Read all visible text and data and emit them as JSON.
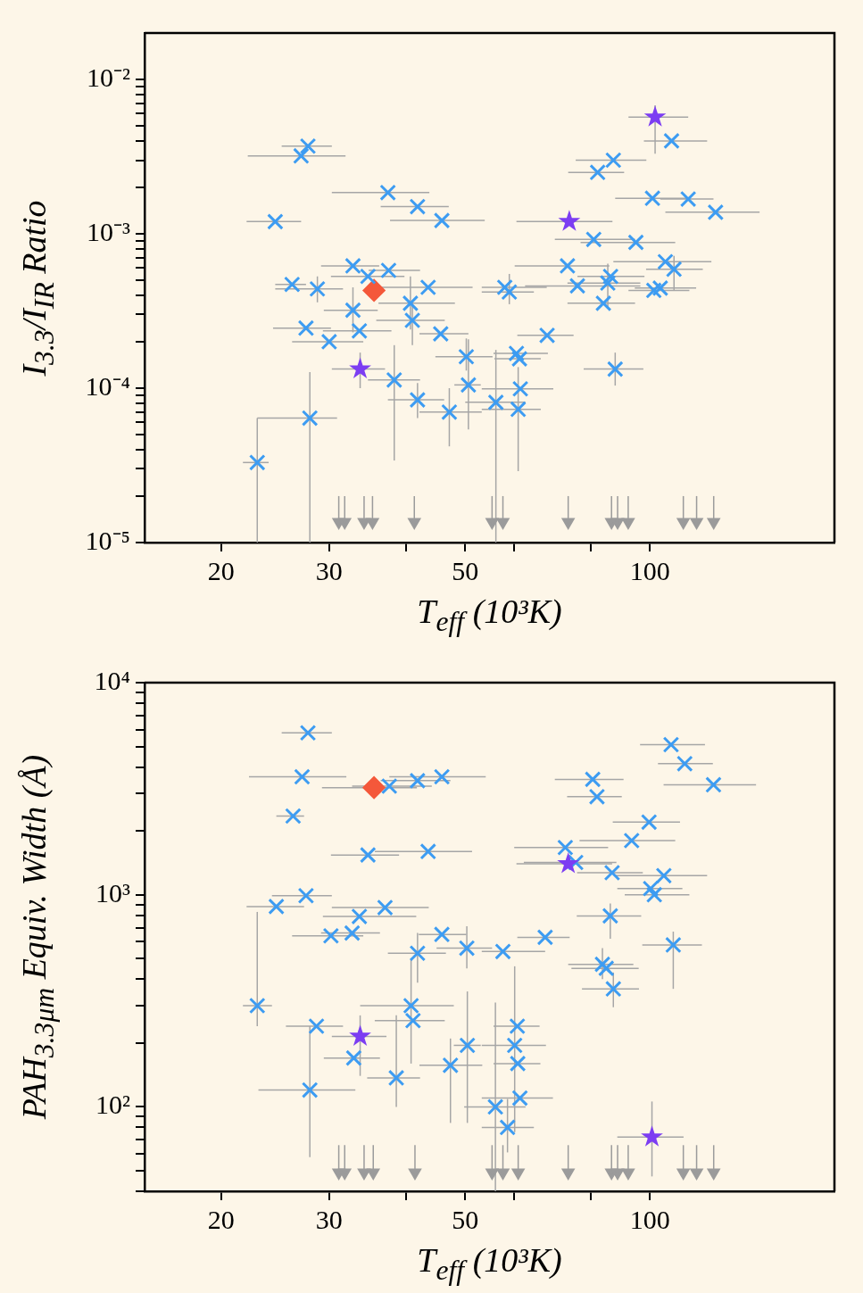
{
  "chart_data": [
    {
      "type": "scatter",
      "xlabel": "T$_{eff}$ (10³K)",
      "ylabel": "I$_{3.3}$/I$_{IR}$ Ratio",
      "log": "xy",
      "xlim": [
        15,
        200
      ],
      "ylim": [
        1e-05,
        0.02
      ],
      "xticks": [
        20,
        30,
        {
          "value": 40,
          "label": null
        },
        50,
        {
          "value": 60,
          "label": null
        },
        {
          "value": 80,
          "label": null
        },
        100
      ],
      "yticks": [
        {
          "value": 1e-05,
          "label": "10⁻⁵"
        },
        {
          "value": 2e-05,
          "label": null
        },
        {
          "value": 3e-05,
          "label": null
        },
        {
          "value": 4e-05,
          "label": null
        },
        {
          "value": 5e-05,
          "label": null
        },
        {
          "value": 6e-05,
          "label": null
        },
        {
          "value": 7e-05,
          "label": null
        },
        {
          "value": 8e-05,
          "label": null
        },
        {
          "value": 9e-05,
          "label": null
        },
        {
          "value": 0.0001,
          "label": "10⁻⁴"
        },
        {
          "value": 0.0002,
          "label": null
        },
        {
          "value": 0.0003,
          "label": null
        },
        {
          "value": 0.0004,
          "label": null
        },
        {
          "value": 0.0005,
          "label": null
        },
        {
          "value": 0.0006,
          "label": null
        },
        {
          "value": 0.0007,
          "label": null
        },
        {
          "value": 0.0008,
          "label": null
        },
        {
          "value": 0.0009,
          "label": null
        },
        {
          "value": 0.001,
          "label": "10⁻³"
        },
        {
          "value": 0.002,
          "label": null
        },
        {
          "value": 0.003,
          "label": null
        },
        {
          "value": 0.004,
          "label": null
        },
        {
          "value": 0.005,
          "label": null
        },
        {
          "value": 0.006,
          "label": null
        },
        {
          "value": 0.007,
          "label": null
        },
        {
          "value": 0.008,
          "label": null
        },
        {
          "value": 0.009,
          "label": null
        },
        {
          "value": 0.01,
          "label": "10⁻²"
        }
      ],
      "series": [
        {
          "color": "#3d9cf2",
          "marker": "cross",
          "x": [
            27.7,
            27.0,
            37.4,
            41.8,
            45.8,
            24.5,
            32.8,
            37.5,
            34.7,
            43.5,
            26.1,
            28.7,
            40.7,
            41.0,
            32.8,
            27.5,
            33.6,
            30.0,
            45.6,
            38.3,
            41.8,
            47.1,
            50.6,
            50.2,
            27.9,
            22.9,
            108.5,
            87.2,
            82.2,
            101,
            115.5,
            128,
            81.0,
            94.9,
            106,
            109.5,
            73.4,
            76.2,
            86.3,
            85.4,
            84.0,
            101.5,
            104,
            58.0,
            59.0,
            68.0,
            60.6,
            61.3,
            61.5,
            61.0,
            56.1,
            87.8
          ],
          "values": [
            0.0037,
            0.0032,
            0.00185,
            0.0015,
            0.00122,
            0.0012,
            0.00062,
            0.00058,
            0.00053,
            0.00045,
            0.00047,
            0.00044,
            0.000355,
            0.000275,
            0.00032,
            0.000245,
            0.000235,
            0.0002,
            0.000225,
            0.000113,
            8.4e-05,
            7e-05,
            0.000105,
            0.00016,
            6.4e-05,
            3.3e-05,
            0.004,
            0.003,
            0.0025,
            0.0017,
            0.00168,
            0.00138,
            0.00092,
            0.00088,
            0.00066,
            0.00059,
            0.00062,
            0.00046,
            0.00053,
            0.00048,
            0.000355,
            0.00043,
            0.000445,
            0.00045,
            0.00042,
            0.00022,
            0.000168,
            0.000155,
            9.9e-05,
            7.3e-05,
            8.1e-05,
            0.000133
          ],
          "xerrors": [
            [
              25.1,
              30.3
            ],
            [
              22.1,
              31.9
            ],
            [
              30.3,
              43.7
            ],
            [
              36.4,
              47.0
            ],
            [
              37.7,
              53.8
            ],
            [
              22.0,
              27.0
            ],
            [
              29.1,
              36.2
            ],
            [
              34.8,
              42.2
            ],
            [
              30.2,
              39.8
            ],
            [
              36.2,
              51.4
            ],
            [
              24.5,
              27.5
            ],
            [
              24.5,
              31.6
            ],
            [
              36.1,
              48.1
            ],
            [
              35.8,
              46.3
            ],
            [
              29.4,
              36.0
            ],
            [
              24.3,
              30.2
            ],
            [
              29.3,
              37.9
            ],
            [
              26.1,
              34.1
            ],
            [
              42.1,
              50.6
            ],
            [
              34.7,
              42.2
            ],
            [
              37.4,
              46.2
            ],
            [
              42.1,
              53.2
            ],
            [
              48.0,
              53.0
            ],
            [
              44.7,
              55.4
            ],
            [
              22.9,
              30.9
            ],
            [
              21.7,
              23.9
            ],
            [
              97.8,
              124
            ],
            [
              75.7,
              98.7
            ],
            [
              73.6,
              90.8
            ],
            [
              87.8,
              115
            ],
            [
              104,
              127
            ],
            [
              106,
              151
            ],
            [
              70.0,
              94.6
            ],
            [
              77.1,
              110
            ],
            [
              87.2,
              126
            ],
            [
              98.6,
              122
            ],
            [
              60.2,
              85.9
            ],
            [
              62.6,
              96.5
            ],
            [
              76.2,
              98.0
            ],
            [
              73.4,
              96.5
            ],
            [
              73.4,
              94.6
            ],
            [
              92.3,
              116
            ],
            [
              94.5,
              119
            ],
            [
              53.2,
              67.9
            ],
            [
              53.2,
              64.7
            ],
            [
              60.8,
              75.1
            ],
            [
              55.6,
              68.2
            ],
            [
              55.8,
              66.4
            ],
            [
              53.2,
              69.6
            ],
            [
              53.2,
              66.4
            ],
            [
              50.0,
              62.7
            ],
            [
              78.0,
              97.6
            ]
          ],
          "errors": [
            null,
            null,
            null,
            null,
            null,
            null,
            null,
            null,
            null,
            null,
            null,
            [
              0.00036,
              0.00053
            ],
            [
              0.00024,
              0.00053
            ],
            [
              0.00019,
              0.00036
            ],
            [
              0.00023,
              0.00045
            ],
            null,
            null,
            null,
            null,
            [
              3.4e-05,
              0.00019
            ],
            [
              6.4e-05,
              0.000108
            ],
            [
              4.2e-05,
              0.0001
            ],
            [
              5.4e-05,
              0.000207
            ],
            [
              0.00013,
              0.00021
            ],
            [
              1e-05,
              0.000127
            ],
            [
              1e-05,
              6.4e-05
            ],
            null,
            null,
            null,
            null,
            null,
            null,
            null,
            null,
            null,
            [
              0.00043,
              0.00072
            ],
            null,
            null,
            null,
            [
              0.000335,
              0.00064
            ],
            null,
            null,
            null,
            null,
            [
              0.00035,
              0.00055
            ],
            null,
            null,
            null,
            null,
            [
              2.9e-05,
              0.000137
            ],
            [
              1e-05,
              0.000177
            ],
            [
              0.000104,
              0.00017
            ]
          ]
        },
        {
          "color": "#f4583a",
          "marker": "diamond",
          "x": [
            35.5
          ],
          "values": [
            0.00043
          ]
        },
        {
          "color": "#7c3df2",
          "marker": "star",
          "x": [
            33.7,
            73.9,
            102
          ],
          "values": [
            0.000133,
            0.0012,
            0.0057
          ],
          "xerrors": [
            [
              30.3,
              37.0
            ],
            [
              60.6,
              86.9
            ],
            [
              92.3,
              115.5
            ]
          ],
          "errors": [
            [
              0.0001,
              0.00017
            ],
            null,
            [
              0.0033,
              0.0068
            ]
          ]
        },
        {
          "color": "#9b9b9b",
          "marker": "triangle",
          "x": [
            31.1,
            31.8,
            34.2,
            35.3,
            41.3,
            55.3,
            57.6,
            73.6,
            86.6,
            88.6,
            92.2,
            113.4,
            119.2,
            127.1
          ],
          "values": [
            1.36e-05,
            1.36e-05,
            1.36e-05,
            1.36e-05,
            1.36e-05,
            1.36e-05,
            1.36e-05,
            1.36e-05,
            1.36e-05,
            1.36e-05,
            1.36e-05,
            1.36e-05,
            1.36e-05,
            1.36e-05
          ],
          "errors": [
            [
              1.36e-05,
              2e-05
            ],
            [
              1.36e-05,
              2e-05
            ],
            [
              1.36e-05,
              2e-05
            ],
            [
              1.36e-05,
              2e-05
            ],
            [
              1.36e-05,
              2e-05
            ],
            [
              1.36e-05,
              2e-05
            ],
            [
              1.36e-05,
              2e-05
            ],
            [
              1.36e-05,
              2e-05
            ],
            [
              1.36e-05,
              2e-05
            ],
            [
              1.36e-05,
              2e-05
            ],
            [
              1.36e-05,
              2e-05
            ],
            [
              1.36e-05,
              2e-05
            ],
            [
              1.36e-05,
              2e-05
            ],
            [
              1.36e-05,
              2e-05
            ]
          ]
        }
      ]
    },
    {
      "type": "scatter",
      "xlabel": "T$_{eff}$ (10³K)",
      "ylabel": "PAH$_{3.3μm}$ Equiv. Width (Å)",
      "log": "xy",
      "xlim": [
        15,
        200
      ],
      "ylim": [
        40,
        10000
      ],
      "xticks": [
        20,
        30,
        {
          "value": 40,
          "label": null
        },
        50,
        {
          "value": 60,
          "label": null
        },
        {
          "value": 80,
          "label": null
        },
        100
      ],
      "yticks": [
        {
          "value": 40,
          "label": null
        },
        {
          "value": 50,
          "label": null
        },
        {
          "value": 60,
          "label": null
        },
        {
          "value": 70,
          "label": null
        },
        {
          "value": 80,
          "label": null
        },
        {
          "value": 90,
          "label": null
        },
        {
          "value": 100,
          "label": "10²"
        },
        {
          "value": 200,
          "label": null
        },
        {
          "value": 300,
          "label": null
        },
        {
          "value": 400,
          "label": null
        },
        {
          "value": 500,
          "label": null
        },
        {
          "value": 600,
          "label": null
        },
        {
          "value": 700,
          "label": null
        },
        {
          "value": 800,
          "label": null
        },
        {
          "value": 900,
          "label": null
        },
        {
          "value": 1000,
          "label": "10³"
        },
        {
          "value": 2000,
          "label": null
        },
        {
          "value": 3000,
          "label": null
        },
        {
          "value": 4000,
          "label": null
        },
        {
          "value": 5000,
          "label": null
        },
        {
          "value": 6000,
          "label": null
        },
        {
          "value": 7000,
          "label": null
        },
        {
          "value": 8000,
          "label": null
        },
        {
          "value": 9000,
          "label": null
        },
        {
          "value": 10000,
          "label": "10⁴"
        }
      ],
      "series": [
        {
          "color": "#3d9cf2",
          "marker": "cross",
          "x": [
            27.7,
            27.1,
            37.6,
            41.8,
            45.8,
            26.2,
            34.7,
            43.5,
            27.5,
            24.6,
            33.6,
            37.0,
            30.2,
            32.7,
            41.8,
            45.8,
            50.3,
            22.9,
            28.6,
            27.9,
            32.9,
            40.8,
            41.1,
            38.6,
            47.3,
            50.4,
            108.3,
            114,
            127,
            80.7,
            82.0,
            99.7,
            93.4,
            72.8,
            75.7,
            86.8,
            105.4,
            100.3,
            101.7,
            86.2,
            109.2,
            67.5,
            57.6,
            83.7,
            84.9,
            87.2,
            60.8,
            60.2,
            60.9,
            61.4,
            56.0,
            58.6
          ],
          "values": [
            5800,
            3600,
            3250,
            3450,
            3600,
            2350,
            1540,
            1600,
            990,
            880,
            790,
            870,
            640,
            660,
            530,
            650,
            560,
            300,
            240,
            120,
            170,
            300,
            255,
            137,
            157,
            195,
            5100,
            4150,
            3300,
            3500,
            2900,
            2200,
            1800,
            1670,
            1420,
            1270,
            1230,
            1070,
            1000,
            795,
            580,
            630,
            540,
            470,
            450,
            360,
            240,
            195,
            160,
            110,
            100,
            80
          ],
          "xerrors": [
            [
              25.1,
              30.3
            ],
            [
              22.2,
              32.0
            ],
            [
              32.7,
              44.1
            ],
            [
              36.4,
              47.3
            ],
            [
              37.6,
              54.0
            ],
            [
              24.6,
              27.3
            ],
            [
              30.2,
              39.0
            ],
            [
              35.6,
              51.3
            ],
            [
              24.2,
              30.3
            ],
            [
              22.0,
              27.3
            ],
            [
              29.3,
              41.6
            ],
            [
              30.3,
              43.6
            ],
            [
              26.1,
              34.1
            ],
            [
              29.1,
              36.3
            ],
            [
              37.4,
              46.5
            ],
            [
              42.0,
              50.2
            ],
            [
              44.9,
              55.3
            ],
            [
              21.7,
              24.2
            ],
            [
              25.5,
              31.6
            ],
            [
              23.0,
              33.1
            ],
            [
              29.4,
              36.3
            ],
            [
              33.7,
              47.9
            ],
            [
              35.6,
              46.3
            ],
            [
              34.6,
              42.2
            ],
            [
              42.1,
              53.3
            ],
            [
              47.9,
              53.0
            ],
            [
              96.4,
              123
            ],
            [
              103.1,
              126.7
            ],
            [
              105.3,
              149
            ],
            [
              70.0,
              90.6
            ],
            [
              73.3,
              90.0
            ],
            [
              87.0,
              112
            ],
            [
              76.8,
              110
            ],
            [
              60.1,
              85.5
            ],
            [
              62.3,
              88.2
            ],
            [
              76.1,
              97.4
            ],
            [
              88.0,
              124
            ],
            [
              88.5,
              113
            ],
            [
              91.0,
              116
            ],
            [
              76.0,
              96.8
            ],
            [
              97.2,
              121.6
            ],
            [
              60.8,
              74.0
            ],
            [
              53.2,
              67.5
            ],
            [
              73.6,
              94.0
            ],
            [
              74.5,
              95.9
            ],
            [
              77.5,
              96.0
            ],
            [
              55.6,
              66.1
            ],
            [
              53.2,
              67.7
            ],
            [
              55.6,
              66.3
            ],
            [
              53.2,
              69.5
            ],
            [
              49.8,
              62.7
            ],
            [
              53.2,
              64.7
            ]
          ],
          "errors": [
            null,
            null,
            null,
            null,
            null,
            null,
            null,
            null,
            null,
            null,
            null,
            null,
            null,
            null,
            [
              385,
              660
            ],
            null,
            [
              450,
              710
            ],
            [
              240,
              830
            ],
            null,
            [
              58,
              240
            ],
            null,
            [
              160,
              500
            ],
            null,
            [
              100,
              270
            ],
            [
              84,
              210
            ],
            [
              84,
              350
            ],
            null,
            null,
            null,
            null,
            null,
            null,
            null,
            null,
            null,
            null,
            null,
            null,
            null,
            [
              620,
              910
            ],
            [
              360,
              670
            ],
            null,
            null,
            [
              400,
              560
            ],
            null,
            [
              295,
              430
            ],
            null,
            [
              76,
              460
            ],
            null,
            null,
            [
              40,
              310
            ],
            [
              61,
              109
            ]
          ]
        },
        {
          "color": "#f4583a",
          "marker": "diamond",
          "x": [
            35.5
          ],
          "values": [
            3200
          ],
          "xerrors": [
            [
              29.2,
              41.7
            ]
          ]
        },
        {
          "color": "#7c3df2",
          "marker": "star",
          "x": [
            33.7,
            73.6,
            100.8
          ],
          "values": [
            215,
            1400,
            72
          ],
          "xerrors": [
            [
              30.3,
              37.2
            ],
            [
              60.6,
              86.8
            ],
            [
              88.5,
              113.5
            ]
          ],
          "errors": [
            [
              140,
              270
            ],
            null,
            [
              47,
              106
            ]
          ]
        },
        {
          "color": "#9b9b9b",
          "marker": "triangle",
          "x": [
            31.1,
            31.8,
            34.2,
            35.4,
            41.4,
            55.3,
            57.6,
            61.0,
            73.6,
            86.6,
            88.6,
            92.2,
            113.4,
            119.2,
            127.1
          ],
          "values": [
            49,
            49,
            49,
            49,
            49,
            49,
            49,
            49,
            49,
            49,
            49,
            49,
            49,
            49,
            49
          ],
          "errors": [
            [
              49,
              66
            ],
            [
              49,
              66
            ],
            [
              49,
              66
            ],
            [
              49,
              66
            ],
            [
              49,
              66
            ],
            [
              49,
              66
            ],
            [
              49,
              66
            ],
            [
              49,
              66
            ],
            [
              49,
              66
            ],
            [
              49,
              66
            ],
            [
              49,
              66
            ],
            [
              49,
              66
            ],
            [
              49,
              66
            ],
            [
              49,
              66
            ],
            [
              49,
              66
            ]
          ]
        }
      ]
    }
  ]
}
